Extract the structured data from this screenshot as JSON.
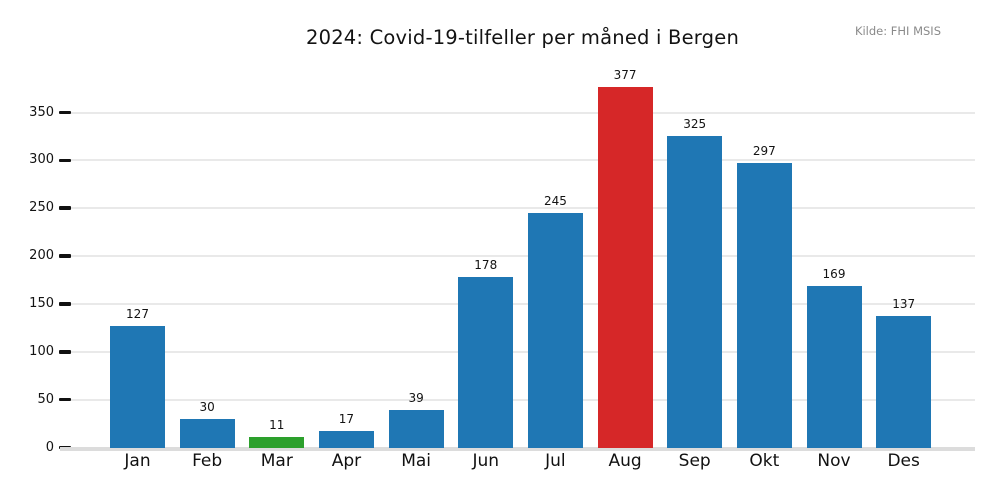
{
  "chart_data": {
    "type": "bar",
    "title": "2024: Covid-19-tilfeller per måned i Bergen",
    "source_note": "Kilde: FHI MSIS",
    "categories": [
      "Jan",
      "Feb",
      "Mar",
      "Apr",
      "Mai",
      "Jun",
      "Jul",
      "Aug",
      "Sep",
      "Okt",
      "Nov",
      "Des"
    ],
    "values": [
      127,
      30,
      11,
      17,
      39,
      178,
      245,
      377,
      325,
      297,
      169,
      137
    ],
    "bar_colors": [
      "#1f77b4",
      "#1f77b4",
      "#2ca02c",
      "#1f77b4",
      "#1f77b4",
      "#1f77b4",
      "#1f77b4",
      "#d62728",
      "#1f77b4",
      "#1f77b4",
      "#1f77b4",
      "#1f77b4"
    ],
    "value_labels_shown": true,
    "xlabel": "",
    "ylabel": "",
    "yticks": [
      0,
      50,
      100,
      150,
      200,
      250,
      300,
      350
    ],
    "ylim": [
      0,
      395
    ],
    "grid": true,
    "legend_position": "none",
    "colors": {
      "bar_default": "#1f77b4",
      "bar_highlight_august": "#d62728",
      "bar_highlight_march": "#2ca02c",
      "gridline": "#e9e9e9",
      "axis_line": "#dcdcdc",
      "tick_mark": "#111111",
      "title_text": "#131313",
      "source_text": "#8a8a8a"
    }
  }
}
